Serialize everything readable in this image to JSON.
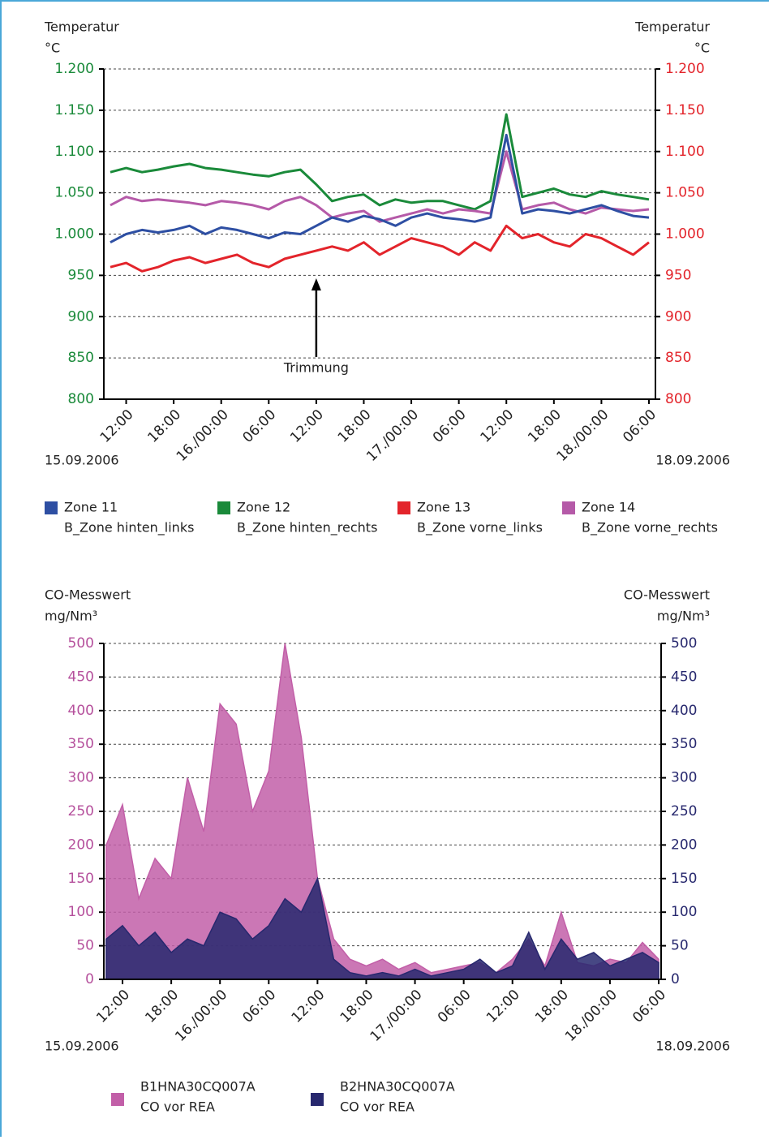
{
  "chart_data": [
    {
      "type": "line",
      "ylabel": "Temperatur",
      "yunit": "°C",
      "y2label": "Temperatur",
      "y2unit": "°C",
      "annotation": "Trimmung",
      "x_start_label": "15.09.2006",
      "x_end_label": "18.09.2006",
      "categories": [
        null,
        "12:00",
        null,
        null,
        "18:00",
        null,
        null,
        "16./00:00",
        null,
        null,
        "06:00",
        null,
        null,
        "12:00",
        null,
        null,
        "18:00",
        null,
        null,
        "17./00:00",
        null,
        null,
        "06:00",
        null,
        null,
        "12:00",
        null,
        null,
        "18:00",
        null,
        null,
        "18./00:00",
        null,
        null,
        "06:00"
      ],
      "ylim": [
        800,
        1200
      ],
      "yticks": [
        800,
        850,
        900,
        950,
        {
          "value": 1000,
          "label": "1.000"
        },
        {
          "value": 1050,
          "label": "1.050"
        },
        {
          "value": 1100,
          "label": "1.100"
        },
        {
          "value": 1150,
          "label": "1.150"
        },
        {
          "value": 1200,
          "label": "1.200"
        }
      ],
      "y2lim": [
        800,
        1200
      ],
      "y2ticks": [
        800,
        850,
        900,
        950,
        {
          "value": 1000,
          "label": "1.000"
        },
        {
          "value": 1050,
          "label": "1.050"
        },
        {
          "value": 1100,
          "label": "1.100"
        },
        {
          "value": 1150,
          "label": "1.150"
        },
        {
          "value": 1200,
          "label": "1.200"
        }
      ],
      "ytick_color": "#1a8a3a",
      "y2tick_color": "#e3242b",
      "grid": true,
      "series": [
        {
          "name": "Zone 12",
          "description": "B_Zone hinten_rechts",
          "color": "#1a8a3a",
          "values": [
            1075,
            1080,
            1075,
            1078,
            1082,
            1085,
            1080,
            1078,
            1075,
            1072,
            1070,
            1075,
            1078,
            1060,
            1040,
            1045,
            1048,
            1035,
            1042,
            1038,
            1040,
            1040,
            1035,
            1030,
            1040,
            1145,
            1045,
            1050,
            1055,
            1048,
            1045,
            1052,
            1048,
            1045,
            1042
          ]
        },
        {
          "name": "Zone 14",
          "description": "B_Zone vorne_rechts",
          "color": "#b55aa8",
          "values": [
            1035,
            1045,
            1040,
            1042,
            1040,
            1038,
            1035,
            1040,
            1038,
            1035,
            1030,
            1040,
            1045,
            1035,
            1020,
            1025,
            1028,
            1015,
            1020,
            1025,
            1030,
            1025,
            1030,
            1028,
            1025,
            1100,
            1030,
            1035,
            1038,
            1030,
            1025,
            1032,
            1030,
            1028,
            1030
          ]
        },
        {
          "name": "Zone 11",
          "description": "B_Zone hinten_links",
          "color": "#2e4fa3",
          "values": [
            990,
            1000,
            1005,
            1002,
            1005,
            1010,
            1000,
            1008,
            1005,
            1000,
            995,
            1002,
            1000,
            1010,
            1020,
            1015,
            1022,
            1018,
            1010,
            1020,
            1025,
            1020,
            1018,
            1015,
            1020,
            1120,
            1025,
            1030,
            1028,
            1025,
            1030,
            1035,
            1028,
            1022,
            1020
          ]
        },
        {
          "name": "Zone 13",
          "description": "B_Zone vorne_links",
          "color": "#e3242b",
          "axis": "y2",
          "values": [
            960,
            965,
            955,
            960,
            968,
            972,
            965,
            970,
            975,
            965,
            960,
            970,
            975,
            980,
            985,
            980,
            990,
            975,
            985,
            995,
            990,
            985,
            975,
            990,
            980,
            1010,
            995,
            1000,
            990,
            985,
            1000,
            995,
            985,
            975,
            990
          ]
        }
      ],
      "legend_order": [
        "Zone 11",
        "Zone 12",
        "Zone 13",
        "Zone 14"
      ]
    },
    {
      "type": "area",
      "ylabel": "CO-Messwert",
      "yunit": "mg/Nm³",
      "y2label": "CO-Messwert",
      "y2unit": "mg/Nm³",
      "x_start_label": "15.09.2006",
      "x_end_label": "18.09.2006",
      "categories": [
        null,
        "12:00",
        null,
        null,
        "18:00",
        null,
        null,
        "16./00:00",
        null,
        null,
        "06:00",
        null,
        null,
        "12:00",
        null,
        null,
        "18:00",
        null,
        null,
        "17./00:00",
        null,
        null,
        "06:00",
        null,
        null,
        "12:00",
        null,
        null,
        "18:00",
        null,
        null,
        "18./00:00",
        null,
        null,
        "06:00"
      ],
      "ylim": [
        0,
        500
      ],
      "yticks": [
        0,
        50,
        100,
        150,
        200,
        250,
        300,
        350,
        400,
        450,
        500
      ],
      "y2lim": [
        0,
        500
      ],
      "y2ticks": [
        0,
        50,
        100,
        150,
        200,
        250,
        300,
        350,
        400,
        450,
        500
      ],
      "ytick_color": "#b5509c",
      "y2tick_color": "#27286e",
      "grid": true,
      "series": [
        {
          "name": "B1HNA30CQ007A",
          "description": "CO vor REA",
          "color": "#c25fa8",
          "values": [
            200,
            260,
            120,
            180,
            150,
            300,
            220,
            410,
            380,
            250,
            310,
            500,
            360,
            150,
            60,
            30,
            20,
            30,
            15,
            25,
            10,
            15,
            20,
            25,
            10,
            30,
            60,
            20,
            100,
            25,
            20,
            30,
            25,
            55,
            30
          ]
        },
        {
          "name": "B2HNA30CQ007A",
          "description": "CO vor REA",
          "color": "#27286e",
          "axis": "y2",
          "values": [
            60,
            80,
            50,
            70,
            40,
            60,
            50,
            100,
            90,
            60,
            80,
            120,
            100,
            150,
            30,
            10,
            5,
            10,
            5,
            15,
            5,
            10,
            15,
            30,
            10,
            20,
            70,
            15,
            60,
            30,
            40,
            20,
            30,
            40,
            25
          ]
        }
      ]
    }
  ]
}
